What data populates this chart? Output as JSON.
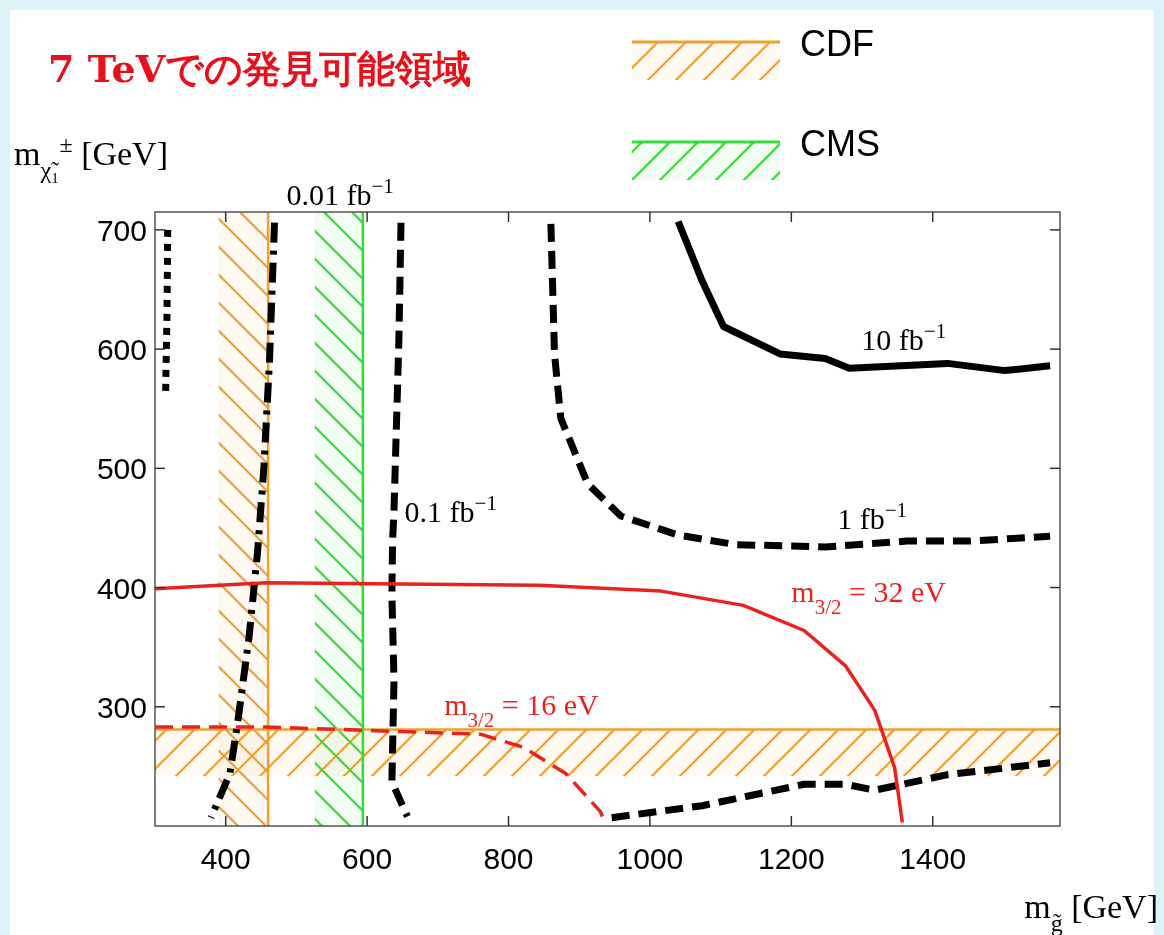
{
  "chart_data": {
    "type": "line",
    "title": "7 TeVでの発見可能領域",
    "xlabel": "m$_{g̃}$ [GeV]",
    "ylabel": "m$_{χ̃₁}$$^{±}$ [GeV]",
    "xlim": [
      300,
      1580
    ],
    "ylim": [
      200,
      715
    ],
    "xticks": [
      400,
      600,
      800,
      1000,
      1200,
      1400
    ],
    "yticks": [
      300,
      400,
      500,
      600,
      700
    ],
    "legend": "top",
    "series": [
      {
        "color": "#000000",
        "line_style": "solid",
        "x": [
          1040,
          1074,
          1104,
          1184,
          1248,
          1282,
          1421,
          1502,
          1566
        ],
        "values": [
          707,
          657,
          619,
          596,
          592,
          584,
          588,
          582,
          586
        ]
      },
      {
        "color": "#000000",
        "line_style": "dashed",
        "x": [
          860,
          865,
          874,
          912,
          959,
          1040,
          1121,
          1248,
          1363,
          1451,
          1566
        ],
        "values": [
          705,
          596,
          542,
          487,
          460,
          444,
          436,
          434,
          439,
          439,
          443
        ]
      },
      {
        "color": "#000000",
        "line_style": "dashed",
        "x": [
          946,
          1074,
          1218,
          1277,
          1318,
          1421,
          1566
        ],
        "values": [
          207,
          217,
          235,
          235,
          230,
          243,
          253
        ]
      },
      {
        "color": "#000000",
        "line_style": "dashed",
        "x": [
          648,
          645,
          638,
          636,
          635,
          638,
          635,
          657
        ],
        "values": [
          706,
          608,
          465,
          440,
          394,
          322,
          237,
          208
        ]
      },
      {
        "color": "#000000",
        "line_style": "dashdot",
        "x": [
          469,
          462,
          454,
          445,
          433,
          417,
          406,
          379
        ],
        "values": [
          706,
          590,
          501,
          429,
          358,
          287,
          244,
          207
        ]
      },
      {
        "color": "#000000",
        "line_style": "dotted",
        "x": [
          318,
          317,
          315
        ],
        "values": [
          700,
          630,
          562
        ]
      },
      {
        "color": "#e8231e",
        "line_style": "solid",
        "x": [
          300,
          457,
          843,
          1016,
          1132,
          1218,
          1277,
          1318,
          1346,
          1357
        ],
        "values": [
          399,
          404,
          402,
          397,
          385,
          364,
          334,
          297,
          249,
          203
        ]
      },
      {
        "color": "#e8231e",
        "line_style": "dashed",
        "x": [
          300,
          457,
          760,
          821,
          881,
          930,
          935
        ],
        "values": [
          283,
          283,
          277,
          266,
          244,
          212,
          205
        ]
      }
    ],
    "bands": [
      {
        "axis": "x",
        "from": 390,
        "to": 460,
        "label": "CDF",
        "color": "#f0a030"
      },
      {
        "axis": "y",
        "from": 242,
        "to": 281,
        "color": "#f0a030"
      },
      {
        "axis": "x",
        "from": 526,
        "to": 594,
        "label": "CMS",
        "color": "#33dd33"
      }
    ],
    "ref_lines": [
      {
        "axis": "x",
        "value": 460,
        "color": "#f0a030"
      },
      {
        "axis": "y",
        "value": 281,
        "color": "#f0a030"
      },
      {
        "axis": "x",
        "value": 594,
        "color": "#33dd33"
      }
    ],
    "annotations": [
      {
        "text": "10 fb$^{−1}$",
        "x": 1282,
        "y": 584
      },
      {
        "text": "1 fb$^{−1}$",
        "x": 1248,
        "y": 434
      },
      {
        "text": "0.1 fb$^{−1}$",
        "x": 636,
        "y": 440
      },
      {
        "text": "0.01 fb$^{−1}$",
        "x": 469,
        "y": 706
      },
      {
        "text": "m$_{3/2}$ = 32 eV",
        "x": 1183,
        "y": 373
      },
      {
        "text": "m$_{3/2}$ = 16 eV",
        "x": 692,
        "y": 278
      }
    ]
  }
}
